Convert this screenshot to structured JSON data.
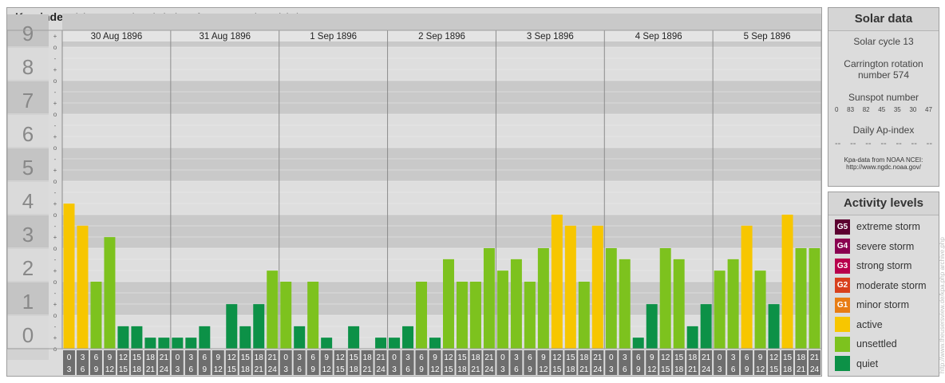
{
  "chart_data": {
    "type": "bar",
    "title": "Kpa-index",
    "subtitle": "(planetary 3-hourly index of geomagnetic activity)",
    "ylim": [
      0,
      9
    ],
    "y_ticks": [
      "0",
      "1",
      "2",
      "3",
      "4",
      "5",
      "6",
      "7",
      "8",
      "9"
    ],
    "minor_tick_labels": [
      "o",
      "+",
      "-"
    ],
    "days": [
      "30 Aug 1896",
      "31 Aug 1896",
      "1 Sep 1896",
      "2 Sep 1896",
      "3 Sep 1896",
      "4 Sep 1896",
      "5 Sep 1896"
    ],
    "intervals": [
      [
        "0",
        "3"
      ],
      [
        "3",
        "6"
      ],
      [
        "6",
        "9"
      ],
      [
        "9",
        "12"
      ],
      [
        "12",
        "15"
      ],
      [
        "15",
        "18"
      ],
      [
        "18",
        "21"
      ],
      [
        "21",
        "24"
      ]
    ],
    "values": [
      [
        4.33,
        3.67,
        2,
        3.33,
        0.67,
        0.67,
        0.33,
        0.33
      ],
      [
        0.33,
        0.33,
        0.67,
        0,
        1.33,
        0.67,
        1.33,
        2.33
      ],
      [
        2,
        0.67,
        2,
        0.33,
        0,
        0.67,
        0,
        0.33
      ],
      [
        0.33,
        0.67,
        2,
        0.33,
        2.67,
        2,
        2,
        3
      ],
      [
        2.33,
        2.67,
        2,
        3,
        4,
        3.67,
        2,
        3.67
      ],
      [
        3,
        2.67,
        0.33,
        1.33,
        3,
        2.67,
        0.67,
        1.33
      ],
      [
        2.33,
        2.67,
        3.67,
        2.33,
        1.33,
        4,
        3,
        3
      ]
    ],
    "bar_colors": {
      "quiet": "#0c9147",
      "unsettled": "#7dc21e",
      "active": "#f7c600"
    }
  },
  "solar_data": {
    "title": "Solar data",
    "solar_cycle": "Solar cycle 13",
    "carrington_line1": "Carrington rotation",
    "carrington_line2": "number 574",
    "sunspot_label": "Sunspot number",
    "sunspot_values": [
      "0",
      "83",
      "82",
      "45",
      "35",
      "30",
      "47"
    ],
    "ap_label": "Daily Ap-index",
    "ap_values": [
      "--",
      "--",
      "--",
      "--",
      "--",
      "--",
      "--"
    ],
    "source_line1": "Kpa-data from NOAA NCEI:",
    "source_line2": "http://www.ngdc.noaa.gov/"
  },
  "activity_levels": {
    "title": "Activity levels",
    "items": [
      {
        "badge": "G5",
        "label": "extreme storm",
        "color": "#5c0030"
      },
      {
        "badge": "G4",
        "label": "severe storm",
        "color": "#8a0050"
      },
      {
        "badge": "G3",
        "label": "strong storm",
        "color": "#b8004c"
      },
      {
        "badge": "G2",
        "label": "moderate storm",
        "color": "#d8401c"
      },
      {
        "badge": "G1",
        "label": "minor storm",
        "color": "#e87d14"
      },
      {
        "badge": "",
        "label": "active",
        "color": "#f7c600"
      },
      {
        "badge": "",
        "label": "unsettled",
        "color": "#7dc21e"
      },
      {
        "badge": "",
        "label": "quiet",
        "color": "#0c9147"
      }
    ]
  },
  "watermark": "http://www.theusersview.de/kpa.php archive.php"
}
